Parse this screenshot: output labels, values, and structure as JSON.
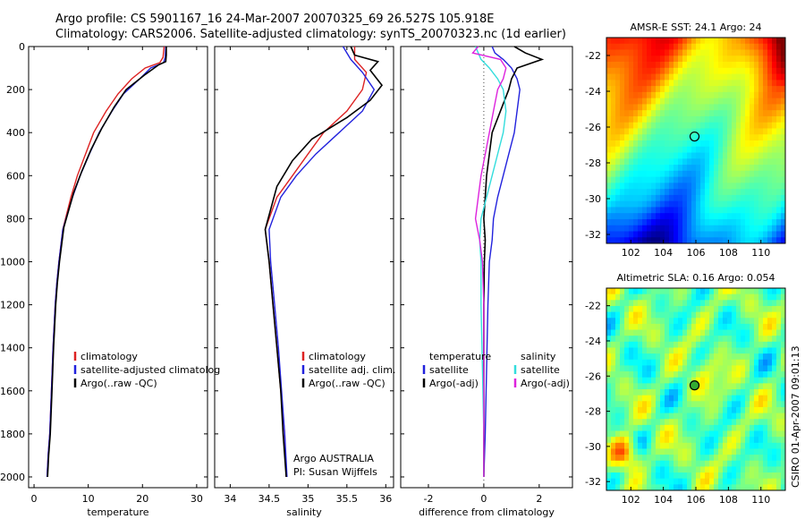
{
  "figure": {
    "title_line1": "Argo profile: CS 5901167_16 24-Mar-2007 20070325_69 26.527S 105.918E",
    "title_line2": "Climatology: CARS2006. Satellite-adjusted climatology: synTS_20070323.nc (1d earlier)",
    "footer_vertical": "CSIRO 01-Apr-2007 09:01:13",
    "credit_line1": "Argo AUSTRALIA",
    "credit_line2": "PI: Susan Wijffels"
  },
  "colors": {
    "climatology": "#dd2222",
    "satellite": "#2222dd",
    "argo": "#000000",
    "sat_salinity": "#33dddd",
    "argo_salinity": "#dd22dd"
  },
  "chart_data": [
    {
      "id": "temperature",
      "type": "line",
      "xlabel": "temperature",
      "ylabel": "",
      "xlim": [
        -1,
        32
      ],
      "ylim": [
        2050,
        0
      ],
      "y_inverted": true,
      "xticks": [
        0,
        10,
        20,
        30
      ],
      "yticks": [
        0,
        200,
        400,
        600,
        800,
        1000,
        1200,
        1400,
        1600,
        1800,
        2000
      ],
      "legend": [
        "climatology",
        "satellite-adjusted climatolog",
        "Argo(..raw -QC)"
      ],
      "series": [
        {
          "name": "climatology",
          "color": "#dd2222",
          "x": [
            24.0,
            23.8,
            23.2,
            20.5,
            18.0,
            15.5,
            13.3,
            11.0,
            9.5,
            8.0,
            6.8,
            5.3,
            4.6,
            4.2,
            3.9,
            3.5,
            3.2,
            2.9,
            2.6,
            2.4
          ],
          "y": [
            0,
            50,
            75,
            100,
            150,
            220,
            300,
            400,
            500,
            600,
            700,
            850,
            1000,
            1100,
            1200,
            1400,
            1600,
            1800,
            1900,
            2000
          ]
        },
        {
          "name": "satellite-adjusted climatolog",
          "color": "#2222dd",
          "x": [
            24.3,
            24.2,
            23.9,
            21.5,
            19.5,
            16.5,
            14.4,
            12.0,
            10.2,
            8.5,
            7.1,
            5.3,
            4.6,
            4.2,
            3.9,
            3.5,
            3.2,
            2.9,
            2.6,
            2.4
          ],
          "y": [
            0,
            50,
            75,
            100,
            150,
            220,
            300,
            400,
            500,
            600,
            700,
            850,
            1000,
            1100,
            1200,
            1400,
            1600,
            1800,
            1900,
            2000
          ]
        },
        {
          "name": "Argo(..raw -QC)",
          "color": "#000000",
          "x": [
            24.4,
            24.4,
            24.3,
            23.0,
            20.5,
            17.0,
            14.8,
            12.5,
            10.5,
            8.8,
            7.3,
            5.5,
            4.7,
            4.3,
            4.0,
            3.6,
            3.3,
            3.0,
            2.7,
            2.5
          ],
          "y": [
            0,
            40,
            70,
            85,
            130,
            200,
            280,
            380,
            480,
            580,
            680,
            840,
            1000,
            1100,
            1200,
            1400,
            1600,
            1800,
            1900,
            2000
          ]
        }
      ]
    },
    {
      "id": "salinity",
      "type": "line",
      "xlabel": "salinity",
      "ylabel": "",
      "xlim": [
        33.8,
        36.1
      ],
      "ylim": [
        2050,
        0
      ],
      "y_inverted": true,
      "xticks": [
        34,
        34.5,
        35,
        35.5,
        36
      ],
      "legend": [
        "climatology",
        "satellite adj. clim.",
        "Argo(..raw -QC)"
      ],
      "series": [
        {
          "name": "climatology",
          "color": "#dd2222",
          "x": [
            35.6,
            35.6,
            35.75,
            35.7,
            35.5,
            35.2,
            35.0,
            34.8,
            34.6,
            34.45,
            34.5,
            34.55,
            34.6,
            34.65,
            34.7,
            34.72
          ],
          "y": [
            0,
            60,
            120,
            200,
            300,
            400,
            500,
            600,
            700,
            850,
            1000,
            1200,
            1400,
            1600,
            1800,
            2000
          ]
        },
        {
          "name": "satellite adj. clim.",
          "color": "#2222dd",
          "x": [
            35.45,
            35.55,
            35.7,
            35.85,
            35.7,
            35.4,
            35.1,
            34.85,
            34.65,
            34.5,
            34.52,
            34.57,
            34.62,
            34.66,
            34.7,
            34.73
          ],
          "y": [
            0,
            60,
            120,
            200,
            300,
            400,
            500,
            600,
            700,
            850,
            1000,
            1200,
            1400,
            1600,
            1800,
            2000
          ]
        },
        {
          "name": "Argo(..raw -QC)",
          "color": "#000000",
          "x": [
            35.55,
            35.6,
            35.9,
            35.8,
            35.95,
            35.8,
            35.5,
            35.05,
            34.8,
            34.6,
            34.45,
            34.5,
            34.55,
            34.6,
            34.65,
            34.68,
            34.72
          ],
          "y": [
            0,
            40,
            70,
            110,
            180,
            250,
            330,
            430,
            530,
            650,
            850,
            1000,
            1200,
            1400,
            1600,
            1800,
            2000
          ]
        }
      ]
    },
    {
      "id": "difference",
      "type": "line",
      "xlabel": "difference from climatology",
      "ylabel": "",
      "xlim": [
        -3.0,
        3.2
      ],
      "ylim": [
        2050,
        0
      ],
      "y_inverted": true,
      "xticks": [
        -2,
        0,
        2
      ],
      "legend_headers": [
        "temperature",
        "salinity"
      ],
      "legend": [
        "satellite",
        "Argo(-adj)",
        "satellite",
        "Argo(-adj)"
      ],
      "series": [
        {
          "name": "satellite",
          "group": "temperature",
          "color": "#2222dd",
          "x": [
            0.3,
            0.4,
            0.7,
            1.0,
            1.2,
            1.3,
            1.2,
            1.1,
            0.9,
            0.7,
            0.5,
            0.35,
            0.3,
            0.2,
            0.15,
            0.1,
            0.05,
            0.0
          ],
          "y": [
            0,
            30,
            60,
            100,
            150,
            200,
            300,
            400,
            500,
            600,
            700,
            800,
            900,
            1000,
            1200,
            1500,
            1800,
            2000
          ]
        },
        {
          "name": "Argo(-adj)",
          "group": "temperature",
          "color": "#000000",
          "x": [
            1.1,
            1.5,
            2.1,
            1.2,
            1.0,
            0.9,
            0.6,
            0.3,
            0.2,
            0.1,
            0.05,
            0.0,
            0.05,
            0.02,
            0.0,
            0.0,
            0.0,
            0.0
          ],
          "y": [
            0,
            30,
            60,
            100,
            150,
            200,
            300,
            400,
            500,
            600,
            700,
            800,
            900,
            1000,
            1200,
            1500,
            1800,
            2000
          ]
        },
        {
          "name": "satellite",
          "group": "salinity",
          "color": "#33dddd",
          "x": [
            -0.3,
            -0.2,
            -0.1,
            0.2,
            0.5,
            0.7,
            0.8,
            0.7,
            0.5,
            0.3,
            0.1,
            -0.1,
            -0.15,
            -0.1,
            -0.1,
            -0.05,
            0.0,
            0.0
          ],
          "y": [
            0,
            30,
            60,
            100,
            150,
            200,
            300,
            400,
            500,
            600,
            700,
            800,
            900,
            1000,
            1200,
            1500,
            1800,
            2000
          ]
        },
        {
          "name": "Argo(-adj)",
          "group": "salinity",
          "color": "#dd22dd",
          "x": [
            -0.2,
            -0.4,
            0.6,
            0.8,
            0.7,
            0.5,
            0.35,
            0.2,
            0.05,
            -0.1,
            -0.2,
            -0.3,
            -0.15,
            -0.05,
            0.0,
            0.0,
            0.0,
            0.0
          ],
          "y": [
            0,
            30,
            60,
            100,
            150,
            200,
            300,
            400,
            500,
            600,
            700,
            800,
            900,
            1000,
            1200,
            1500,
            1800,
            2000
          ]
        }
      ]
    },
    {
      "id": "sst_map",
      "type": "heatmap",
      "title": "AMSR-E SST: 24.1 Argo: 24",
      "xlim": [
        100.5,
        111.5
      ],
      "ylim": [
        -32.5,
        -21
      ],
      "xticks": [
        102,
        104,
        106,
        108,
        110
      ],
      "yticks": [
        -22,
        -24,
        -26,
        -28,
        -30,
        -32
      ],
      "marker": {
        "lon": 105.918,
        "lat": -26.527,
        "fill": "none"
      }
    },
    {
      "id": "sla_map",
      "type": "heatmap",
      "title": "Altimetric SLA: 0.16 Argo: 0.054",
      "xlim": [
        100.5,
        111.5
      ],
      "ylim": [
        -32.5,
        -21
      ],
      "xticks": [
        102,
        104,
        106,
        108,
        110
      ],
      "yticks": [
        -22,
        -24,
        -26,
        -28,
        -30,
        -32
      ],
      "marker": {
        "lon": 105.918,
        "lat": -26.527,
        "fill": "#33aa33"
      }
    }
  ]
}
